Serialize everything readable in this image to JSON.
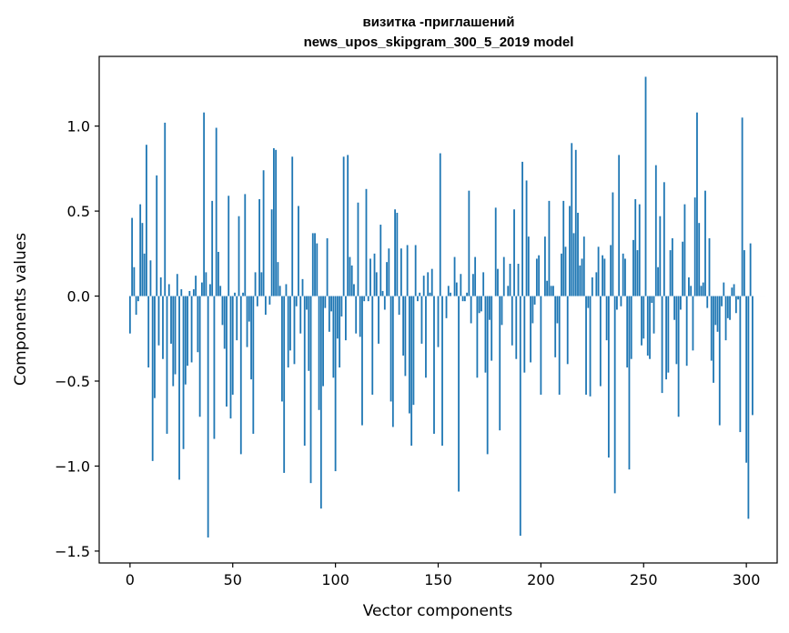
{
  "chart_data": {
    "type": "bar",
    "title_line1": "визитка -приглашений",
    "title_line2": "news_upos_skipgram_300_5_2019 model",
    "xlabel": "Vector components",
    "ylabel": "Components values",
    "xlim": [
      -15,
      315
    ],
    "ylim": [
      -1.57,
      1.41
    ],
    "xticks": [
      0,
      50,
      100,
      150,
      200,
      250,
      300
    ],
    "xtick_labels": [
      "0",
      "50",
      "100",
      "150",
      "200",
      "250",
      "300"
    ],
    "yticks": [
      -1.5,
      -1.0,
      -0.5,
      0.0,
      0.5,
      1.0
    ],
    "ytick_labels": [
      "−1.5",
      "−1.0",
      "−0.5",
      "0.0",
      "0.5",
      "1.0"
    ],
    "grid": false,
    "bar_color": "#1f77b4",
    "values": [
      -0.22,
      0.46,
      0.17,
      -0.11,
      -0.03,
      0.54,
      0.43,
      0.25,
      0.89,
      -0.42,
      0.21,
      -0.97,
      -0.6,
      0.71,
      -0.29,
      0.11,
      -0.37,
      1.02,
      -0.81,
      0.07,
      -0.28,
      -0.53,
      -0.46,
      0.13,
      -1.08,
      0.04,
      -0.9,
      -0.52,
      -0.41,
      0.03,
      -0.39,
      0.04,
      0.12,
      -0.33,
      -0.71,
      0.08,
      1.08,
      0.14,
      -1.42,
      0.07,
      0.56,
      -0.84,
      0.99,
      0.26,
      0.06,
      -0.17,
      -0.31,
      -0.65,
      0.59,
      -0.72,
      -0.58,
      0.02,
      -0.26,
      0.47,
      -0.93,
      0.02,
      0.6,
      -0.3,
      -0.15,
      -0.49,
      -0.81,
      0.14,
      -0.06,
      0.57,
      0.14,
      0.74,
      -0.11,
      0.0,
      -0.05,
      0.51,
      0.87,
      0.86,
      0.2,
      0.06,
      -0.62,
      -1.04,
      0.07,
      -0.42,
      -0.32,
      0.82,
      -0.4,
      -0.06,
      0.53,
      -0.22,
      0.1,
      -0.88,
      -0.08,
      -0.44,
      -1.1,
      0.37,
      0.37,
      0.31,
      -0.67,
      -1.25,
      -0.53,
      -0.07,
      0.34,
      -0.21,
      -0.09,
      -0.48,
      -1.03,
      -0.25,
      -0.42,
      -0.12,
      0.82,
      -0.26,
      0.83,
      0.23,
      0.18,
      0.07,
      -0.22,
      0.55,
      -0.24,
      -0.76,
      -0.03,
      0.63,
      -0.03,
      0.22,
      -0.58,
      0.25,
      0.14,
      -0.28,
      0.42,
      0.03,
      -0.08,
      0.2,
      0.28,
      -0.62,
      -0.77,
      0.51,
      0.49,
      -0.11,
      0.28,
      -0.35,
      -0.47,
      0.3,
      -0.69,
      -0.88,
      -0.64,
      0.3,
      -0.03,
      0.02,
      -0.28,
      0.12,
      -0.48,
      0.14,
      0.02,
      0.16,
      -0.81,
      0.0,
      -0.3,
      0.84,
      -0.88,
      0.0,
      -0.13,
      0.06,
      0.02,
      0.0,
      0.23,
      0.08,
      -1.15,
      0.13,
      -0.03,
      -0.03,
      0.02,
      0.62,
      -0.16,
      0.13,
      0.23,
      -0.48,
      -0.1,
      -0.09,
      0.14,
      -0.45,
      -0.93,
      -0.14,
      -0.38,
      0.0,
      0.52,
      0.16,
      -0.79,
      -0.17,
      0.23,
      0.0,
      0.06,
      0.19,
      -0.29,
      0.51,
      -0.37,
      0.19,
      -1.41,
      0.79,
      -0.45,
      0.68,
      0.35,
      -0.39,
      -0.16,
      -0.05,
      0.22,
      0.24,
      -0.58,
      0.0,
      0.35,
      0.09,
      0.56,
      0.06,
      0.06,
      -0.36,
      -0.16,
      -0.58,
      0.25,
      0.56,
      0.29,
      -0.4,
      0.53,
      0.9,
      0.37,
      0.86,
      0.49,
      0.18,
      0.22,
      0.35,
      -0.58,
      -0.07,
      -0.59,
      0.11,
      0.0,
      0.14,
      0.29,
      -0.53,
      0.24,
      0.22,
      -0.26,
      -0.95,
      0.3,
      0.61,
      -1.16,
      -0.08,
      0.83,
      -0.06,
      0.25,
      0.22,
      -0.42,
      -1.02,
      -0.37,
      0.33,
      0.57,
      0.27,
      0.54,
      -0.29,
      -0.25,
      1.29,
      -0.35,
      -0.37,
      -0.04,
      -0.22,
      0.77,
      0.17,
      0.47,
      -0.57,
      0.67,
      -0.49,
      -0.45,
      0.27,
      0.34,
      -0.14,
      -0.4,
      -0.71,
      -0.08,
      0.32,
      0.54,
      -0.41,
      0.11,
      0.06,
      -0.32,
      0.58,
      1.08,
      0.43,
      0.06,
      0.08,
      0.62,
      -0.07,
      0.34,
      -0.38,
      -0.51,
      -0.17,
      -0.21,
      -0.76,
      -0.06,
      0.08,
      -0.26,
      -0.13,
      -0.14,
      0.05,
      0.07,
      -0.1,
      -0.02,
      -0.8,
      1.05,
      0.27,
      -0.98,
      -1.31,
      0.31,
      -0.7,
      0.0,
      0.0,
      0.0,
      0.0,
      0.0,
      0.0
    ]
  }
}
